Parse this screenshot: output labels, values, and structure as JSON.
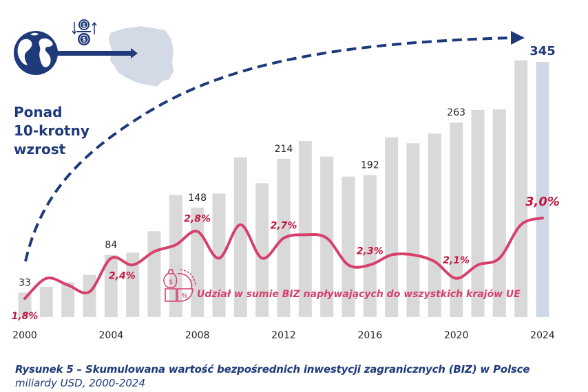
{
  "chart_data": {
    "type": "bar",
    "title": "Rysunek 5 – Skumulowana wartość bezpośrednich inwestycji zagranicznych (BIZ) w Polsce",
    "subtitle": "miliardy USD, 2000-2024",
    "xlabel": "",
    "ylabel": "miliardy USD",
    "ylim": [
      0,
      345
    ],
    "grid": false,
    "categories": [
      "2000",
      "2001",
      "2002",
      "2003",
      "2004",
      "2005",
      "2006",
      "2007",
      "2008",
      "2009",
      "2010",
      "2011",
      "2012",
      "2013",
      "2014",
      "2015",
      "2016",
      "2017",
      "2018",
      "2019",
      "2020",
      "2021",
      "2022",
      "2023",
      "2024"
    ],
    "x_tick_labels": [
      "2000",
      "2004",
      "2008",
      "2012",
      "2016",
      "2020",
      "2024"
    ],
    "series": [
      {
        "name": "Skumulowana wartość BIZ (mld USD)",
        "type": "bar",
        "values": [
          33,
          41,
          47,
          57,
          84,
          87,
          116,
          165,
          148,
          167,
          216,
          181,
          214,
          238,
          217,
          190,
          192,
          243,
          235,
          248,
          263,
          280,
          281,
          347,
          345
        ],
        "labeled_values": {
          "2000": "33",
          "2004": "84",
          "2008": "148",
          "2012": "214",
          "2016": "192",
          "2020": "263",
          "2024": "345"
        },
        "color": "#d9d9d9",
        "highlight_color": "#d0d8e6"
      },
      {
        "name": "Udział w sumie BIZ napływających do wszystkich krajów UE",
        "type": "line",
        "values": [
          1.8,
          2.1,
          2.0,
          1.9,
          2.4,
          2.3,
          2.5,
          2.6,
          2.8,
          2.4,
          2.9,
          2.4,
          2.7,
          2.75,
          2.7,
          2.3,
          2.3,
          2.45,
          2.45,
          2.35,
          2.1,
          2.3,
          2.4,
          2.9,
          3.0
        ],
        "labeled_values": {
          "2000": "1,8%",
          "2004": "2,4%",
          "2008": "2,8%",
          "2012": "2,7%",
          "2016": "2,3%",
          "2020": "2,1%",
          "2024": "3,0%"
        },
        "color": "#d6416b"
      }
    ],
    "annotations": [
      "Ponad 10-krotny wzrost",
      "Udział w sumie BIZ napływających do wszystkich krajów UE"
    ],
    "legend_position": "inline"
  },
  "headline": {
    "line1": "Ponad",
    "line2": "10-krotny",
    "line3": "wzrost"
  },
  "series_label": "Udział w sumie BIZ napływających do wszystkich krajów UE",
  "caption": {
    "title": "Rysunek 5 – Skumulowana wartość bezpośrednich inwestycji zagranicznych (BIZ) w Polsce",
    "subtitle": "miliardy USD, 2000-2024"
  },
  "colors": {
    "navy": "#1f3a7a",
    "bar": "#d9d9d9",
    "bar_highlight": "#d0d8e6",
    "line": "#d6416b",
    "pct_label": "#c4173f",
    "poland_map": "#d4d9e6"
  },
  "icons": [
    "globe-icon",
    "coins-exchange-icon",
    "poland-map-icon",
    "money-bag-percent-icon"
  ]
}
